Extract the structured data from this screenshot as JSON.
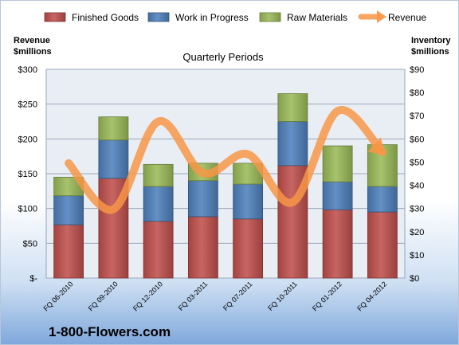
{
  "chart_data": {
    "type": "bar",
    "subtitle": "Quarterly Periods",
    "categories": [
      "FQ 06-2010",
      "FQ 09-2010",
      "FQ 12-2010",
      "FQ 03-2011",
      "FQ 07-2011",
      "FQ 10-2011",
      "FQ 01-2012",
      "FQ 04-2012"
    ],
    "stacked_series": [
      {
        "name": "Finished Goods",
        "color": "#c0504d",
        "values": [
          23,
          43,
          24.5,
          26.5,
          25.5,
          48.5,
          29.5,
          28.5
        ]
      },
      {
        "name": "Work in Progress",
        "color": "#4f81bd",
        "values": [
          12.5,
          16.5,
          15,
          15.5,
          15,
          19,
          12,
          11
        ]
      },
      {
        "name": "Raw Materials",
        "color": "#9bbb59",
        "values": [
          8,
          10,
          9.5,
          7.5,
          9,
          12,
          15.5,
          18
        ]
      }
    ],
    "line_series": {
      "name": "Revenue",
      "color": "#f79646",
      "values": [
        165,
        99,
        225,
        151,
        178,
        109,
        240,
        181
      ]
    },
    "left_axis": {
      "label_line1": "Revenue",
      "label_line2": "$millions",
      "ylim": [
        0,
        300
      ],
      "ticks": [
        "$-",
        "$50",
        "$100",
        "$150",
        "$200",
        "$250",
        "$300"
      ]
    },
    "right_axis": {
      "label_line1": "Inventory",
      "label_line2": "$millions",
      "ylim": [
        0,
        90
      ],
      "ticks": [
        "$0",
        "$10",
        "$20",
        "$30",
        "$40",
        "$50",
        "$60",
        "$70",
        "$80",
        "$90"
      ]
    },
    "grid": true,
    "legend_position": "top"
  },
  "brand": "1-800-Flowers.com"
}
